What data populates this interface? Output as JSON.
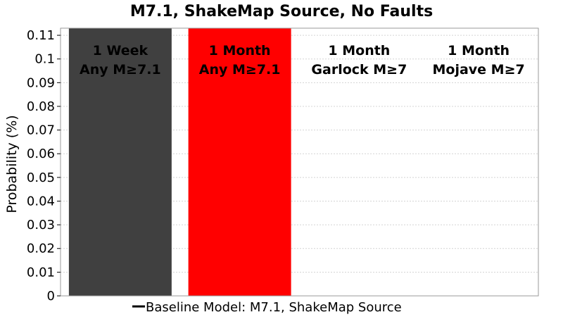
{
  "chart_data": {
    "type": "bar",
    "title": "M7.1, ShakeMap Source, No Faults",
    "ylabel": "Probability (%)",
    "xlabel": "",
    "ylim": [
      0,
      0.113
    ],
    "yticks": [
      0,
      0.01,
      0.02,
      0.03,
      0.04,
      0.05,
      0.06,
      0.07,
      0.08,
      0.09,
      0.1,
      0.11
    ],
    "ytick_labels": [
      "0",
      "0.01",
      "0.02",
      "0.03",
      "0.04",
      "0.05",
      "0.06",
      "0.07",
      "0.08",
      "0.09",
      "0.1",
      "0.11"
    ],
    "grid": true,
    "categories": [
      {
        "line1": "1 Week",
        "line2": "Any M≥7.1"
      },
      {
        "line1": "1 Month",
        "line2": "Any M≥7.1"
      },
      {
        "line1": "1 Month",
        "line2": "Garlock M≥7"
      },
      {
        "line1": "1 Month",
        "line2": "Mojave M≥7"
      }
    ],
    "values": [
      0.113,
      0.113,
      0,
      0
    ],
    "colors": [
      "#404040",
      "#ff0000",
      "#ffffff",
      "#ffffff"
    ],
    "legend": {
      "position": "bottom",
      "entries": [
        {
          "label": "Baseline Model: M7.1, ShakeMap Source",
          "color": "#000000"
        }
      ]
    }
  }
}
